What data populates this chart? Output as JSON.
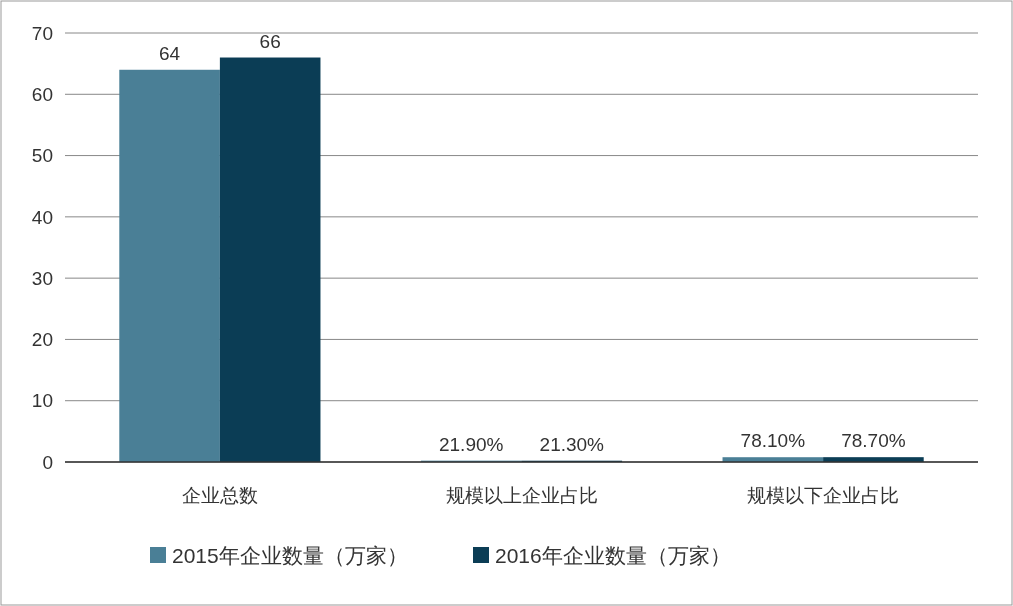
{
  "chart_data": {
    "type": "bar",
    "categories": [
      "企业总数",
      "规模以上企业占比",
      "规模以下企业占比"
    ],
    "series": [
      {
        "name": "2015年企业数量（万家）",
        "color": "#4a7f96",
        "values": [
          64,
          0.219,
          0.781
        ],
        "value_labels": [
          "64",
          "21.90%",
          "78.10%"
        ]
      },
      {
        "name": "2016年企业数量（万家）",
        "color": "#0b3d55",
        "values": [
          66,
          0.213,
          0.787
        ],
        "value_labels": [
          "66",
          "21.30%",
          "78.70%"
        ]
      }
    ],
    "ylim": [
      0,
      70
    ],
    "yticks": [
      0,
      10,
      20,
      30,
      40,
      50,
      60,
      70
    ],
    "grid": "y",
    "legend": "bottom"
  }
}
